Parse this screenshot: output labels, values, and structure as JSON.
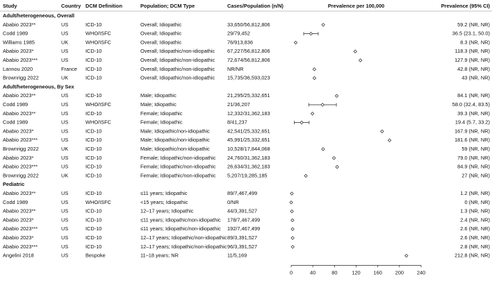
{
  "chart_data": {
    "type": "forest",
    "headers": [
      "Study",
      "Country",
      "DCM Definition",
      "Population; DCM Type",
      "Cases/Population (n/N)",
      "Prevalence per 100,000",
      "Prevalence (95% CI)"
    ],
    "xlim": [
      0,
      240
    ],
    "xticks": [
      0,
      40,
      80,
      120,
      160,
      200,
      240
    ],
    "groups": [
      {
        "name": "Adult/heterogeneous, Overall",
        "rows": [
          {
            "cells": [
              "Ababio 2023**",
              "US",
              "ICD-10",
              "Overall; Idiopathic",
              "33,650/56,812,806"
            ],
            "value": 59.2,
            "low": null,
            "high": null,
            "value_label": "59.2 (NR, NR)"
          },
          {
            "cells": [
              "Codd 1989",
              "US",
              "WHO/ISFC",
              "Overall; Idiopathic",
              "29/79,452"
            ],
            "value": 36.5,
            "low": 23.1,
            "high": 50.0,
            "value_label": "36.5 (23.1, 50.0)"
          },
          {
            "cells": [
              "Williams 1985",
              "UK",
              "WHO/ISFC",
              "Overall; Idiopathic",
              "76/913,836"
            ],
            "value": 8.3,
            "low": null,
            "high": null,
            "value_label": "8.3 (NR, NR)"
          },
          {
            "cells": [
              "Ababio 2023*",
              "US",
              "ICD-10",
              "Overall; Idiopathic/non-idiopathic",
              "67,227/56,812,806"
            ],
            "value": 118.3,
            "low": null,
            "high": null,
            "value_label": "118.3 (NR, NR)"
          },
          {
            "cells": [
              "Ababio 2023***",
              "US",
              "ICD-10",
              "Overall; Idiopathic/non-idiopathic",
              "72,674/56,812,806"
            ],
            "value": 127.9,
            "low": null,
            "high": null,
            "value_label": "127.9 (NR, NR)"
          },
          {
            "cells": [
              "Lannou 2020",
              "France",
              "ICD-10",
              "Overall; Idiopathic/non-idiopathic",
              "NR/NR"
            ],
            "value": 42.8,
            "low": null,
            "high": null,
            "value_label": "42.8 (NR, NR)"
          },
          {
            "cells": [
              "Brownrigg 2022",
              "UK",
              "ICD-10",
              "Overall; Idiopathic/non-idiopathic",
              "15,735/36,593,023"
            ],
            "value": 43,
            "low": null,
            "high": null,
            "value_label": "43 (NR, NR)"
          }
        ]
      },
      {
        "name": "Adult/heterogeneous, By Sex",
        "rows": [
          {
            "cells": [
              "Ababio 2023**",
              "US",
              "ICD-10",
              "Male; Idiopathic",
              "21,295/25,332,651"
            ],
            "value": 84.1,
            "low": null,
            "high": null,
            "value_label": "84.1 (NR, NR)"
          },
          {
            "cells": [
              "Codd 1989",
              "US",
              "WHO/ISFC",
              "Male; Idiopathic",
              "21/36,207"
            ],
            "value": 58.0,
            "low": 32.4,
            "high": 83.5,
            "value_label": "58.0 (32.4, 83.5)"
          },
          {
            "cells": [
              "Ababio 2023**",
              "US",
              "ICD-10",
              "Female; Idiopathic",
              "12,332/31,362,183"
            ],
            "value": 39.3,
            "low": null,
            "high": null,
            "value_label": "39.3 (NR, NR)"
          },
          {
            "cells": [
              "Codd 1989",
              "US",
              "WHO/ISFC",
              "Female; Idiopathic",
              "8/41,237"
            ],
            "value": 19.4,
            "low": 5.7,
            "high": 33.2,
            "value_label": "19.4 (5.7, 33.2)"
          },
          {
            "cells": [
              "Ababio 2023*",
              "US",
              "ICD-10",
              "Male; Idiopathic/non-idiopathic",
              "42,541/25,332,651"
            ],
            "value": 167.9,
            "low": null,
            "high": null,
            "value_label": "167.9 (NR, NR)"
          },
          {
            "cells": [
              "Ababio 2023***",
              "US",
              "ICD-10",
              "Male; Idiopathic/non-idiopathic",
              "45,991/25,332,651"
            ],
            "value": 181.6,
            "low": null,
            "high": null,
            "value_label": "181.6 (NR, NR)"
          },
          {
            "cells": [
              "Brownrigg 2022",
              "UK",
              "ICD-10",
              "Male; Idiopathic/non-idiopathic",
              "10,528/17,844,068"
            ],
            "value": 59,
            "low": null,
            "high": null,
            "value_label": "59 (NR, NR)"
          },
          {
            "cells": [
              "Ababio 2023*",
              "US",
              "ICD-10",
              "Female; Idiopathic/non-idiopathic",
              "24,760/31,362,183"
            ],
            "value": 79.0,
            "low": null,
            "high": null,
            "value_label": "79.0 (NR, NR)"
          },
          {
            "cells": [
              "Ababio 2023***",
              "US",
              "ICD-10",
              "Female; Idiopathic/non-idiopathic",
              "26,634/31,362,183"
            ],
            "value": 84.9,
            "low": null,
            "high": null,
            "value_label": "84.9 (NR, NR)"
          },
          {
            "cells": [
              "Brownrigg 2022",
              "UK",
              "ICD-10",
              "Female; Idiopathic/non-idiopathic",
              "5,207/19,285,185"
            ],
            "value": 27,
            "low": null,
            "high": null,
            "value_label": "27 (NR, NR)"
          }
        ]
      },
      {
        "name": "Pediatric",
        "rows": [
          {
            "cells": [
              "Ababio 2023**",
              "US",
              "ICD-10",
              "≤11 years; Idiopathic",
              "89/7,467,499"
            ],
            "value": 1.2,
            "low": null,
            "high": null,
            "value_label": "1.2 (NR, NR)"
          },
          {
            "cells": [
              "Codd 1989",
              "US",
              "WHO/ISFC",
              "<15 years; Idiopathic",
              "0/NR"
            ],
            "value": 0,
            "low": null,
            "high": null,
            "value_label": "0 (NR, NR)"
          },
          {
            "cells": [
              "Ababio 2023**",
              "US",
              "ICD-10",
              "12–17 years; Idiopathic",
              "44/3,391,527"
            ],
            "value": 1.3,
            "low": null,
            "high": null,
            "value_label": "1.3 (NR, NR)"
          },
          {
            "cells": [
              "Ababio 2023*",
              "US",
              "ICD-10",
              "≤11 years; Idiopathic/non-idiopathic",
              "178/7,467,499"
            ],
            "value": 2.4,
            "low": null,
            "high": null,
            "value_label": "2.4 (NR, NR)"
          },
          {
            "cells": [
              "Ababio 2023***",
              "US",
              "ICD-10",
              "≤11 years; Idiopathic/non-idiopathic",
              "192/7,467,499"
            ],
            "value": 2.6,
            "low": null,
            "high": null,
            "value_label": "2.6 (NR, NR)"
          },
          {
            "cells": [
              "Ababio 2023*",
              "US",
              "ICD-10",
              "12–17 years; Idiopathic/non-idiopathic",
              "89/3,391,527"
            ],
            "value": 2.6,
            "low": null,
            "high": null,
            "value_label": "2.6 (NR, NR)"
          },
          {
            "cells": [
              "Ababio 2023***",
              "US",
              "ICD-10",
              "12–17 years; Idiopathic/non-idiopathic",
              "96/3,391,527"
            ],
            "value": 2.8,
            "low": null,
            "high": null,
            "value_label": "2.8 (NR, NR)"
          },
          {
            "cells": [
              "Angelini 2018",
              "US",
              "Bespoke",
              "11–18 years; NR",
              "11/5,169"
            ],
            "value": 212.8,
            "low": null,
            "high": null,
            "value_label": "212.8 (NR, NR)"
          }
        ]
      }
    ]
  }
}
